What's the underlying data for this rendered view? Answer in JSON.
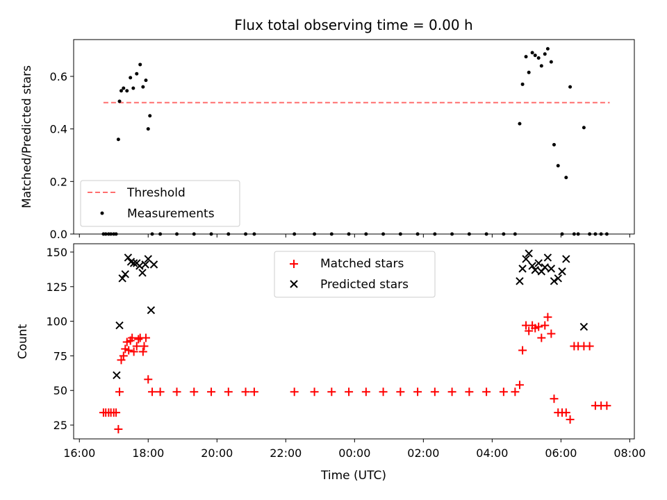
{
  "chart_data": [
    {
      "type": "scatter",
      "title": "Flux total observing time = 0.00 h",
      "xlabel": "",
      "ylabel": "Matched/Predicted stars",
      "ylim": [
        0,
        0.74
      ],
      "yticks": [
        "0.0",
        "0.2",
        "0.4",
        "0.6"
      ],
      "grid": false,
      "legend_placement": "lower-left",
      "series": [
        {
          "name": "Threshold",
          "kind": "line",
          "color": "#ff6e6e",
          "dash": true,
          "x": [
            "2023-01-01T16:42",
            "2023-01-02T07:25"
          ],
          "y": [
            0.5,
            0.5
          ]
        },
        {
          "name": "Measurements",
          "kind": "point",
          "color": "#000000",
          "x": [
            "2023-01-01T16:42",
            "2023-01-01T16:46",
            "2023-01-01T16:51",
            "2023-01-01T16:55",
            "2023-01-01T17:00",
            "2023-01-01T17:04",
            "2023-01-01T17:08",
            "2023-01-01T17:10",
            "2023-01-01T17:13",
            "2023-01-01T17:17",
            "2023-01-01T17:23",
            "2023-01-01T17:29",
            "2023-01-01T17:34",
            "2023-01-01T17:40",
            "2023-01-01T17:46",
            "2023-01-01T17:51",
            "2023-01-01T17:56",
            "2023-01-01T18:00",
            "2023-01-01T18:03",
            "2023-01-01T18:07",
            "2023-01-01T18:21",
            "2023-01-01T18:50",
            "2023-01-01T19:20",
            "2023-01-01T19:50",
            "2023-01-01T20:20",
            "2023-01-01T20:50",
            "2023-01-01T21:05",
            "2023-01-01T22:15",
            "2023-01-01T22:50",
            "2023-01-01T23:20",
            "2023-01-01T23:50",
            "2023-01-02T00:20",
            "2023-01-02T00:50",
            "2023-01-02T01:20",
            "2023-01-02T01:50",
            "2023-01-02T02:20",
            "2023-01-02T02:50",
            "2023-01-02T03:20",
            "2023-01-02T03:50",
            "2023-01-02T04:20",
            "2023-01-02T04:40",
            "2023-01-02T04:48",
            "2023-01-02T04:53",
            "2023-01-02T04:59",
            "2023-01-02T05:04",
            "2023-01-02T05:10",
            "2023-01-02T05:15",
            "2023-01-02T05:21",
            "2023-01-02T05:26",
            "2023-01-02T05:32",
            "2023-01-02T05:37",
            "2023-01-02T05:43",
            "2023-01-02T05:48",
            "2023-01-02T05:55",
            "2023-01-02T06:02",
            "2023-01-02T06:09",
            "2023-01-02T06:16",
            "2023-01-02T06:23",
            "2023-01-02T06:30",
            "2023-01-02T06:40",
            "2023-01-02T06:50",
            "2023-01-02T07:00",
            "2023-01-02T07:10",
            "2023-01-02T07:20"
          ],
          "y": [
            0,
            0,
            0,
            0,
            0,
            0,
            0.36,
            0.505,
            0.545,
            0.555,
            0.545,
            0.595,
            0.555,
            0.61,
            0.645,
            0.56,
            0.585,
            0.4,
            0.45,
            0,
            0,
            0,
            0,
            0,
            0,
            0,
            0,
            0,
            0,
            0,
            0,
            0,
            0,
            0,
            0,
            0,
            0,
            0,
            0,
            0,
            0,
            0.42,
            0.57,
            0.675,
            0.615,
            0.69,
            0.68,
            0.67,
            0.64,
            0.685,
            0.705,
            0.655,
            0.34,
            0.26,
            0,
            0.215,
            0.56,
            0,
            0,
            0.405,
            0,
            0,
            0,
            0
          ]
        }
      ]
    },
    {
      "type": "scatter",
      "title": "",
      "xlabel": "Time (UTC)",
      "ylabel": "Count",
      "ylim": [
        15,
        156
      ],
      "yticks": [
        "25",
        "50",
        "75",
        "100",
        "125",
        "150"
      ],
      "xlim": [
        "2023-01-01T15:50",
        "2023-01-02T08:08"
      ],
      "xticks": [
        "16:00",
        "18:00",
        "20:00",
        "22:00",
        "00:00",
        "02:00",
        "04:00",
        "06:00",
        "08:00"
      ],
      "grid": false,
      "legend_placement": "upper-center",
      "series": [
        {
          "name": "Matched stars",
          "marker": "plus",
          "color": "#ff0000",
          "x": [
            "2023-01-01T16:42",
            "2023-01-01T16:46",
            "2023-01-01T16:51",
            "2023-01-01T16:55",
            "2023-01-01T17:00",
            "2023-01-01T17:04",
            "2023-01-01T17:08",
            "2023-01-01T17:10",
            "2023-01-01T17:13",
            "2023-01-01T17:17",
            "2023-01-01T17:20",
            "2023-01-01T17:23",
            "2023-01-01T17:26",
            "2023-01-01T17:29",
            "2023-01-01T17:32",
            "2023-01-01T17:35",
            "2023-01-01T17:40",
            "2023-01-01T17:43",
            "2023-01-01T17:46",
            "2023-01-01T17:51",
            "2023-01-01T17:53",
            "2023-01-01T17:56",
            "2023-01-01T18:00",
            "2023-01-01T18:07",
            "2023-01-01T18:21",
            "2023-01-01T18:50",
            "2023-01-01T19:20",
            "2023-01-01T19:50",
            "2023-01-01T20:20",
            "2023-01-01T20:50",
            "2023-01-01T21:05",
            "2023-01-01T22:15",
            "2023-01-01T22:50",
            "2023-01-01T23:20",
            "2023-01-01T23:50",
            "2023-01-02T00:20",
            "2023-01-02T00:50",
            "2023-01-02T01:20",
            "2023-01-02T01:50",
            "2023-01-02T02:20",
            "2023-01-02T02:50",
            "2023-01-02T03:20",
            "2023-01-02T03:50",
            "2023-01-02T04:20",
            "2023-01-02T04:40",
            "2023-01-02T04:48",
            "2023-01-02T04:53",
            "2023-01-02T04:59",
            "2023-01-02T05:04",
            "2023-01-02T05:10",
            "2023-01-02T05:15",
            "2023-01-02T05:21",
            "2023-01-02T05:26",
            "2023-01-02T05:32",
            "2023-01-02T05:37",
            "2023-01-02T05:43",
            "2023-01-02T05:48",
            "2023-01-02T05:55",
            "2023-01-02T06:02",
            "2023-01-02T06:09",
            "2023-01-02T06:16",
            "2023-01-02T06:23",
            "2023-01-02T06:30",
            "2023-01-02T06:40",
            "2023-01-02T06:50",
            "2023-01-02T07:00",
            "2023-01-02T07:10",
            "2023-01-02T07:20"
          ],
          "y": [
            34,
            34,
            34,
            34,
            34,
            34,
            22,
            49,
            72,
            75,
            80,
            85,
            79,
            86,
            88,
            78,
            82,
            87,
            88,
            78,
            82,
            88,
            58,
            49,
            49,
            49,
            49,
            49,
            49,
            49,
            49,
            49,
            49,
            49,
            49,
            49,
            49,
            49,
            49,
            49,
            49,
            49,
            49,
            49,
            49,
            54,
            79,
            97,
            93,
            97,
            95,
            96,
            88,
            97,
            103,
            91,
            44,
            34,
            34,
            34,
            29,
            82,
            82,
            82,
            82,
            39,
            39,
            39
          ]
        },
        {
          "name": "Predicted stars",
          "marker": "x",
          "color": "#000000",
          "x": [
            "2023-01-01T17:05",
            "2023-01-01T17:10",
            "2023-01-01T17:15",
            "2023-01-01T17:20",
            "2023-01-01T17:25",
            "2023-01-01T17:30",
            "2023-01-01T17:35",
            "2023-01-01T17:40",
            "2023-01-01T17:45",
            "2023-01-01T17:50",
            "2023-01-01T17:55",
            "2023-01-01T18:00",
            "2023-01-01T18:05",
            "2023-01-01T18:10",
            "2023-01-02T04:48",
            "2023-01-02T04:53",
            "2023-01-02T04:59",
            "2023-01-02T05:04",
            "2023-01-02T05:10",
            "2023-01-02T05:15",
            "2023-01-02T05:21",
            "2023-01-02T05:26",
            "2023-01-02T05:32",
            "2023-01-02T05:37",
            "2023-01-02T05:43",
            "2023-01-02T05:48",
            "2023-01-02T05:55",
            "2023-01-02T06:02",
            "2023-01-02T06:09",
            "2023-01-02T06:40"
          ],
          "y": [
            61,
            97,
            131,
            134,
            146,
            143,
            142,
            142,
            140,
            135,
            141,
            145,
            108,
            141,
            129,
            138,
            145,
            149,
            140,
            137,
            142,
            136,
            139,
            146,
            138,
            129,
            131,
            136,
            145,
            96
          ]
        }
      ]
    }
  ]
}
